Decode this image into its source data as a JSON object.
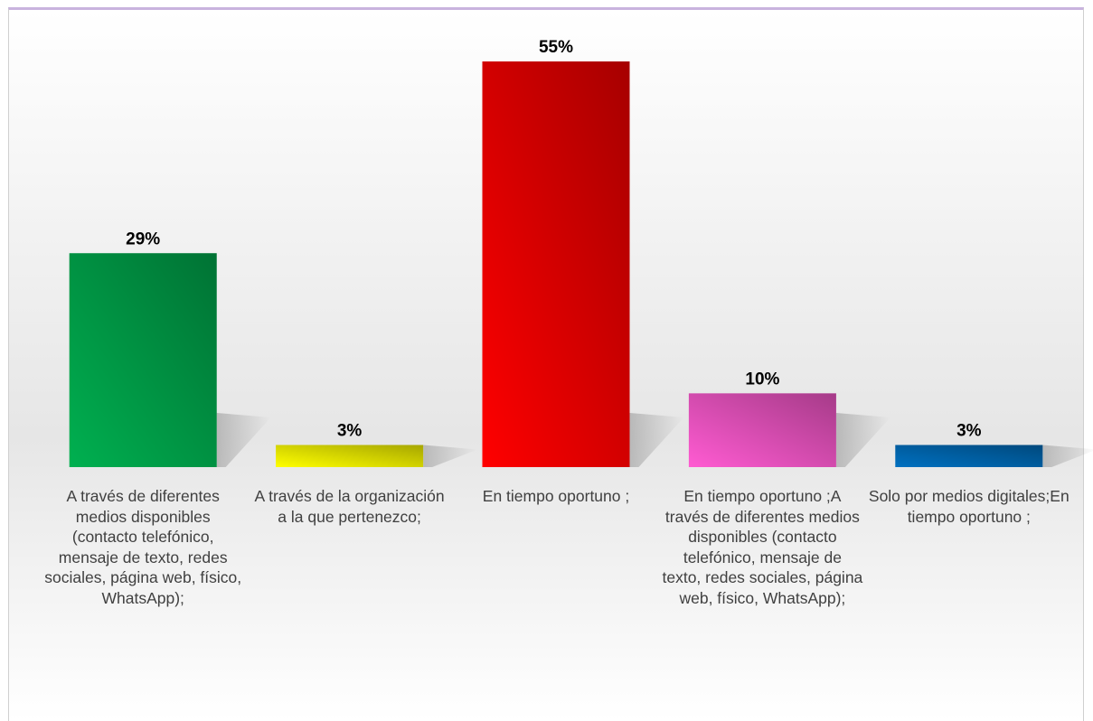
{
  "chart_data": {
    "type": "bar",
    "categories": [
      "A través de diferentes medios disponibles (contacto telefónico, mensaje de texto, redes sociales, página web, físico, WhatsApp);",
      "A través de la organización a la que pertenezco;",
      "En tiempo oportuno ;",
      "En tiempo oportuno ;A través de diferentes medios disponibles (contacto telefónico, mensaje de texto, redes sociales, página web, físico, WhatsApp);",
      "Solo por medios digitales;En tiempo oportuno ;"
    ],
    "values": [
      29,
      3,
      55,
      10,
      3
    ],
    "value_labels": [
      "29%",
      "3%",
      "55%",
      "10%",
      "3%"
    ],
    "colors": [
      "#00b050",
      "#ffff00",
      "#ff0000",
      "#ff5bd2",
      "#0070c0"
    ]
  }
}
